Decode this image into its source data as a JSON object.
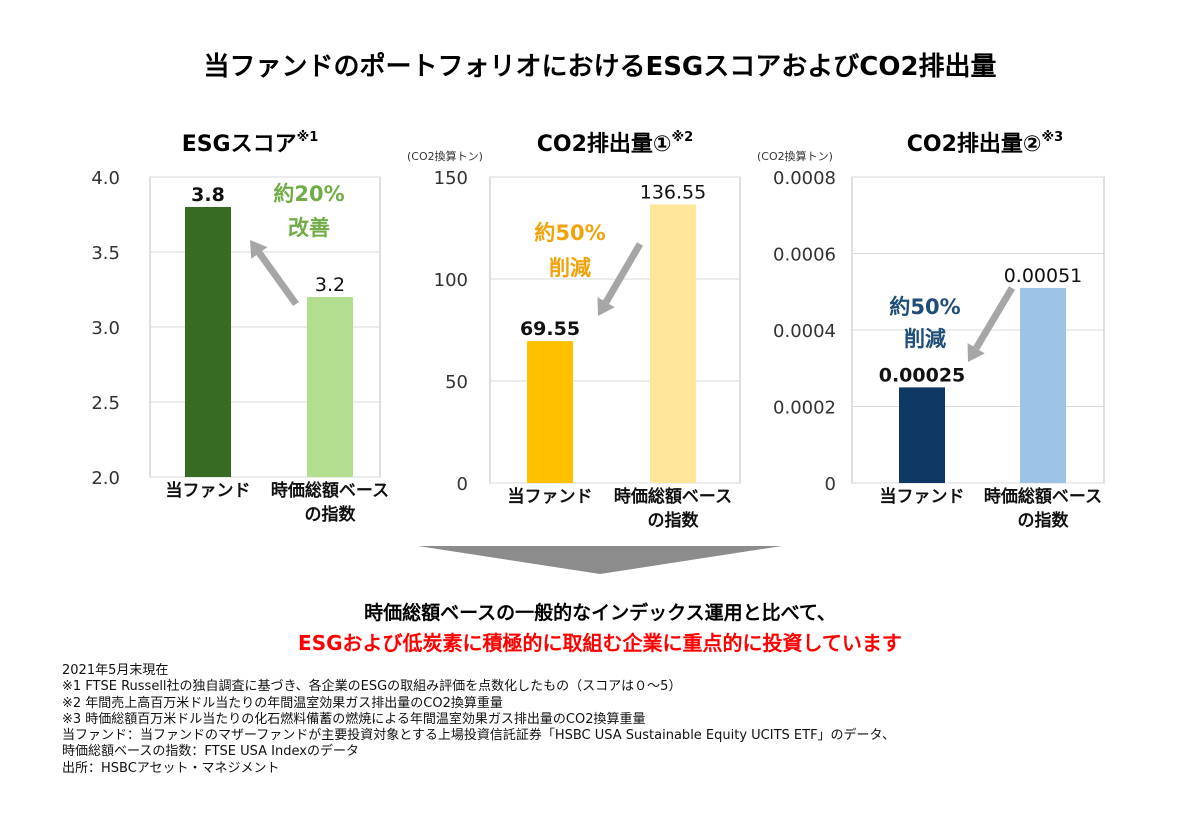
{
  "title": "当ファンドのポートフォリオにおけるESGスコアおよびCO2排出量",
  "chart_data": [
    {
      "type": "bar",
      "title": "ESGスコア",
      "title_note": "※1",
      "unit": "",
      "categories": [
        "当ファンド",
        "時価総額ベース\nの指数"
      ],
      "values": [
        3.8,
        3.2
      ],
      "value_labels": [
        "3.8",
        "3.2"
      ],
      "colors": [
        "#376b21",
        "#b3de8f"
      ],
      "ylim": [
        2.0,
        4.0
      ],
      "yticks": [
        "2.0",
        "2.5",
        "3.0",
        "3.5",
        "4.0"
      ],
      "annotation": [
        "約20%",
        "改善"
      ],
      "annotation_color": "#70ad47",
      "grid": true
    },
    {
      "type": "bar",
      "title": "CO2排出量①",
      "title_note": "※2",
      "unit": "(CO2換算トン)",
      "categories": [
        "当ファンド",
        "時価総額ベース\nの指数"
      ],
      "values": [
        69.55,
        136.55
      ],
      "value_labels": [
        "69.55",
        "136.55"
      ],
      "colors": [
        "#ffc000",
        "#ffe699"
      ],
      "ylim": [
        0,
        150
      ],
      "yticks": [
        "0",
        "50",
        "100",
        "150"
      ],
      "annotation": [
        "約50%",
        "削減"
      ],
      "annotation_color": "#f0a30a",
      "grid": true
    },
    {
      "type": "bar",
      "title": "CO2排出量②",
      "title_note": "※3",
      "unit": "(CO2換算トン)",
      "categories": [
        "当ファンド",
        "時価総額ベース\nの指数"
      ],
      "values": [
        0.00025,
        0.00051
      ],
      "value_labels": [
        "0.00025",
        "0.00051"
      ],
      "colors": [
        "#0f3864",
        "#9dc3e6"
      ],
      "ylim": [
        0,
        0.0008
      ],
      "yticks": [
        "0",
        "0.0002",
        "0.0004",
        "0.0006",
        "0.0008"
      ],
      "annotation": [
        "約50%",
        "削減"
      ],
      "annotation_color": "#1f4e79",
      "grid": true
    }
  ],
  "banner": {
    "line1": "時価総額ベースの一般的なインデックス運用と比べて、",
    "line2": "ESGおよび低炭素に積極的に取組む企業に重点的に投資しています",
    "line2_color": "#ff0000"
  },
  "notes": [
    "2021年5月末現在",
    "※1  FTSE Russell社の独自調査に基づき、各企業のESGの取組み評価を点数化したもの（スコアは０～5）",
    "※2  年間売上高百万米ドル当たりの年間温室効果ガス排出量のCO2換算重量",
    "※3  時価総額百万米ドル当たりの化石燃料備蓄の燃焼による年間温室効果ガス排出量のCO2換算重量",
    "当ファンド：当ファンドのマザーファンドが主要投資対象とする上場投資信託証券「HSBC USA Sustainable Equity UCITS ETF」のデータ、",
    "時価総額ベースの指数：FTSE USA Indexのデータ",
    "出所：HSBCアセット・マネジメント"
  ]
}
